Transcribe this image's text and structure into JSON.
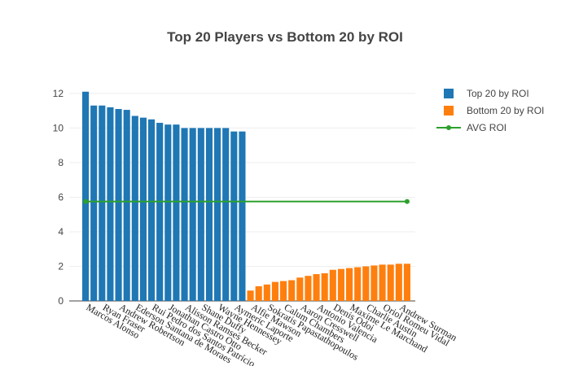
{
  "chart_data": {
    "type": "bar",
    "title": "Top 20 Players vs Bottom 20 by ROI",
    "categories": [
      "Marcos Alonso",
      null,
      "Ryan Fraser",
      null,
      "Andrew Robertson",
      null,
      "Ederson Santana de Moraes",
      null,
      "Rui Pedro dos Santos Patrício",
      null,
      "Jonathan Castro Otto",
      null,
      "Alisson Ramses Becker",
      null,
      "Shane Duffy",
      null,
      "Wayne Hennessey",
      null,
      "Aymeric Laporte",
      null,
      "Alfie Mawson",
      null,
      "Sokratis Papastathopoulos",
      null,
      "Calum Chambers",
      null,
      "Aaron Cresswell",
      null,
      "Antonio Valencia",
      null,
      "Denis Odoi",
      null,
      "Maxime Le Marchand",
      null,
      "Charlie Austin",
      null,
      "Oriol Romeu Vidal",
      null,
      "Andrew Surman",
      null
    ],
    "series": [
      {
        "name": "Top 20 by ROI",
        "type": "bar",
        "color": "#1f77b4",
        "values": [
          12.1,
          11.3,
          11.3,
          11.2,
          11.1,
          11.05,
          10.7,
          10.6,
          10.5,
          10.3,
          10.2,
          10.2,
          10.0,
          10.0,
          10.0,
          10.0,
          10.0,
          10.0,
          9.8,
          9.8,
          null,
          null,
          null,
          null,
          null,
          null,
          null,
          null,
          null,
          null,
          null,
          null,
          null,
          null,
          null,
          null,
          null,
          null,
          null,
          null
        ]
      },
      {
        "name": "Bottom 20 by ROI",
        "type": "bar",
        "color": "#ff7f0e",
        "values": [
          null,
          null,
          null,
          null,
          null,
          null,
          null,
          null,
          null,
          null,
          null,
          null,
          null,
          null,
          null,
          null,
          null,
          null,
          null,
          null,
          0.6,
          0.85,
          0.95,
          1.1,
          1.15,
          1.2,
          1.35,
          1.45,
          1.55,
          1.6,
          1.8,
          1.85,
          1.9,
          1.95,
          2.0,
          2.05,
          2.1,
          2.1,
          2.15,
          2.15
        ]
      },
      {
        "name": "AVG ROI",
        "type": "line",
        "color": "#2ca02c",
        "values": [
          5.75,
          5.75,
          5.75,
          5.75,
          5.75,
          5.75,
          5.75,
          5.75,
          5.75,
          5.75,
          5.75,
          5.75,
          5.75,
          5.75,
          5.75,
          5.75,
          5.75,
          5.75,
          5.75,
          5.75,
          5.75,
          5.75,
          5.75,
          5.75,
          5.75,
          5.75,
          5.75,
          5.75,
          5.75,
          5.75,
          5.75,
          5.75,
          5.75,
          5.75,
          5.75,
          5.75,
          5.75,
          5.75,
          5.75,
          5.75
        ]
      }
    ],
    "ylim": [
      0,
      12.7
    ],
    "yticks": [
      0,
      2,
      4,
      6,
      8,
      10,
      12
    ],
    "grid": true,
    "legend": "right"
  }
}
